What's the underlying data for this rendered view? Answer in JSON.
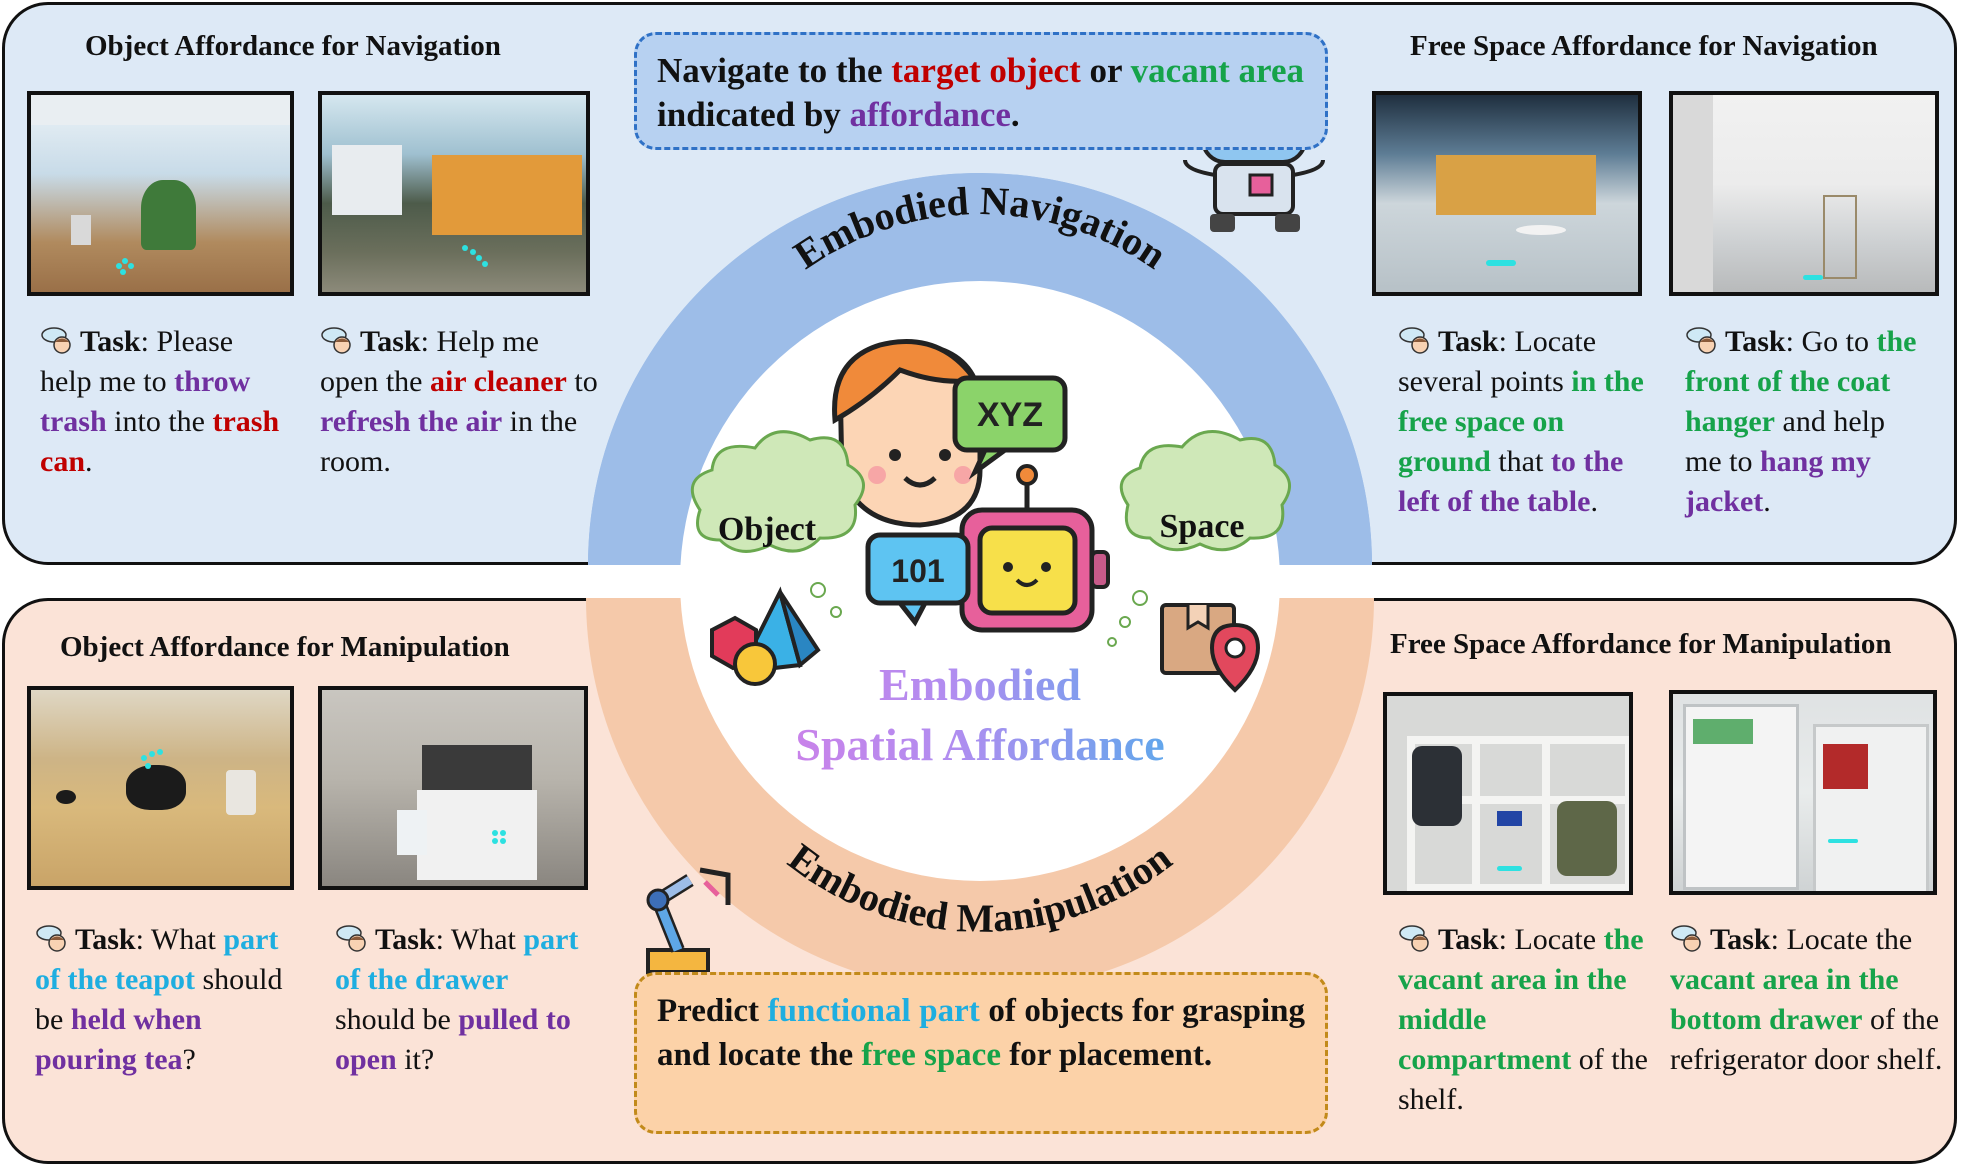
{
  "top": {
    "left_title": "Object Affordance for Navigation",
    "right_title": "Free Space Affordance for Navigation",
    "callout": {
      "t1": "Navigate to the ",
      "t2": "target object",
      "t3": " or ",
      "t4": "vacant area",
      "t5": " indicated by ",
      "t6": "affordance",
      "t7": "."
    },
    "tasks": [
      {
        "label": "Task",
        "p1": ": Please help me to ",
        "h1": "throw trash",
        "p2": " into the ",
        "h2": "trash can",
        "p3": "."
      },
      {
        "label": "Task",
        "p1": ": Help me open the ",
        "h1": "air cleaner",
        "p2": " to ",
        "h2": "refresh the air",
        "p3": " in the room."
      },
      {
        "label": "Task",
        "p1": ": Locate several points ",
        "h1": "in the free space on ground",
        "p2": " that ",
        "h2": "to the left of the table",
        "p3": "."
      },
      {
        "label": "Task",
        "p1": ": Go to ",
        "h1": "the front of the coat hanger",
        "p2": " and help me to ",
        "h2": "hang my jacket",
        "p3": "."
      }
    ]
  },
  "bottom": {
    "left_title": "Object Affordance for Manipulation",
    "right_title": "Free Space Affordance for Manipulation",
    "callout": {
      "t1": "Predict ",
      "t2": "functional part",
      "t3": " of objects for grasping and locate the ",
      "t4": "free space",
      "t5": " for placement."
    },
    "tasks": [
      {
        "label": "Task",
        "p1": ": What ",
        "h1": "part of the teapot",
        "p2": " should be ",
        "h2": "held when pouring tea",
        "p3": "?"
      },
      {
        "label": "Task",
        "p1": ": What ",
        "h1": "part of the drawer",
        "p2": " should be ",
        "h2": "pulled to open",
        "p3": " it?"
      },
      {
        "label": "Task",
        "p1": ": Locate ",
        "h1": "the vacant area in the middle compartment",
        "p2": " of the shelf.",
        "h2": "",
        "p3": ""
      },
      {
        "label": "Task",
        "p1": ": Locate the ",
        "h1": "vacant area in the bottom drawer",
        "p2": " of the refrigerator door shelf.",
        "h2": "",
        "p3": ""
      }
    ]
  },
  "center": {
    "arc_top": "Embodied Navigation",
    "arc_bottom": "Embodied Manipulation",
    "title_line1": "Embodied",
    "title_line2": "Spatial Affordance",
    "bubble_object": "Object",
    "bubble_space": "Space",
    "speech_xyz": "XYZ",
    "speech_101": "101"
  },
  "colors": {
    "nav_panel": "#dde9f6",
    "man_panel": "#fbe3d7",
    "nav_arc": "#9dbde8",
    "man_arc": "#f5c9aa",
    "purple": "#7030a0",
    "red": "#c00000",
    "green": "#16a34a",
    "blue": "#1eaee0"
  }
}
